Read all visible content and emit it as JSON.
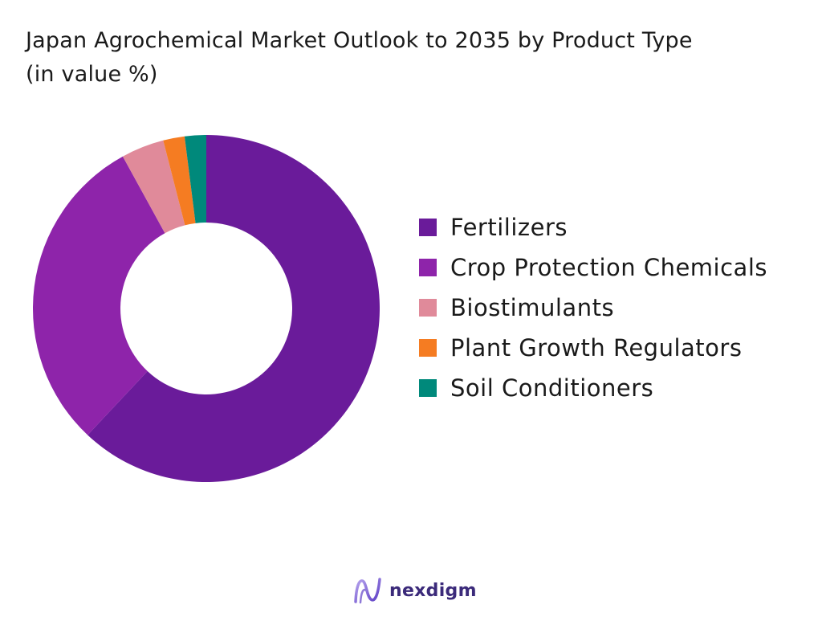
{
  "chart_data": {
    "type": "pie",
    "title": "Japan Agrochemical Market Outlook to 2035 by Product Type",
    "subtitle": "(in value %)",
    "donut": true,
    "legend_position": "right",
    "series": [
      {
        "name": "Fertilizers",
        "value": 62,
        "color": "#6a1b9a"
      },
      {
        "name": "Crop Protection Chemicals",
        "value": 30,
        "color": "#8e24aa"
      },
      {
        "name": "Biostimulants",
        "value": 4,
        "color": "#e08a9a"
      },
      {
        "name": "Plant Growth Regulators",
        "value": 2,
        "color": "#f57c22"
      },
      {
        "name": "Soil Conditioners",
        "value": 2,
        "color": "#00897b"
      }
    ]
  },
  "brand": {
    "name": "nexdigm",
    "icon": "nexdigm-logo-icon"
  }
}
